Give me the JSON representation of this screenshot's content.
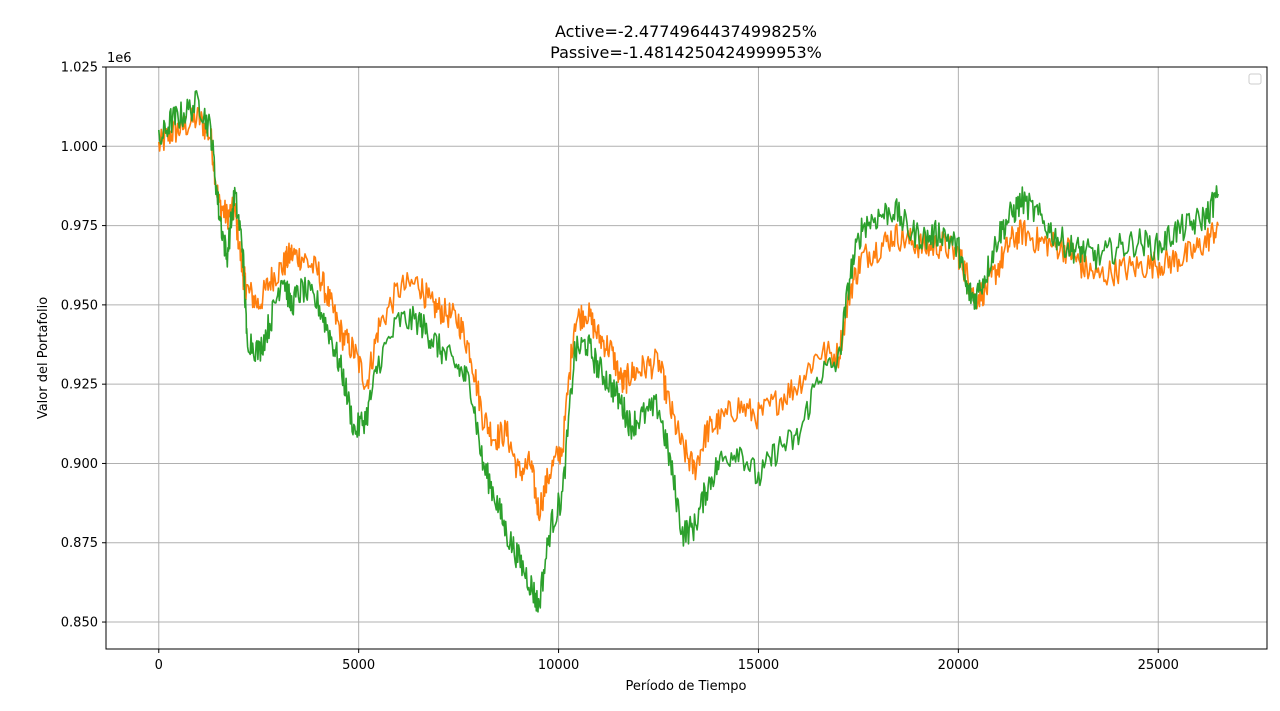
{
  "chart_data": {
    "type": "line",
    "title_lines": [
      "Active=-2.4774964437499825%",
      "Passive=-1.4814250424999953%"
    ],
    "xlabel": "Período de Tiempo",
    "ylabel": "Valor del Portafolio",
    "y_offset_label": "1e6",
    "xlim": [
      -1320,
      27720
    ],
    "ylim": [
      0.8415,
      1.025
    ],
    "x_ticks": [
      0,
      5000,
      10000,
      15000,
      20000,
      25000
    ],
    "x_tick_labels": [
      "0",
      "5000",
      "10000",
      "15000",
      "20000",
      "25000"
    ],
    "y_ticks": [
      0.85,
      0.875,
      0.9,
      0.925,
      0.95,
      0.975,
      1.0,
      1.025
    ],
    "y_tick_labels": [
      "0.850",
      "0.875",
      "0.900",
      "0.925",
      "0.950",
      "0.975",
      "1.000",
      "1.025"
    ],
    "grid": true,
    "legend": {
      "placement": "upper-right",
      "entries": []
    },
    "series": [
      {
        "color": "#ff7f0e",
        "x": [
          0,
          300,
          600,
          1000,
          1300,
          1500,
          1700,
          1900,
          2100,
          2200,
          2500,
          2800,
          3100,
          3300,
          3600,
          4000,
          4300,
          4600,
          4900,
          5200,
          5500,
          6000,
          6500,
          6800,
          7100,
          7500,
          7800,
          8100,
          8400,
          8700,
          9000,
          9300,
          9500,
          9800,
          10100,
          10400,
          10700,
          11000,
          11300,
          11600,
          11800,
          12100,
          12500,
          12800,
          13100,
          13400,
          13700,
          14000,
          14500,
          15000,
          15500,
          16000,
          16500,
          17000,
          17300,
          17600,
          18000,
          18400,
          18800,
          19200,
          19600,
          20000,
          20200,
          20400,
          20700,
          21000,
          21300,
          21600,
          22000,
          22400,
          22800,
          23100,
          23500,
          24000,
          24500,
          25000,
          25400,
          25800,
          26200,
          26500
        ],
        "y": [
          1.0,
          1.004,
          1.006,
          1.009,
          1.003,
          0.982,
          0.978,
          0.98,
          0.96,
          0.955,
          0.95,
          0.958,
          0.962,
          0.966,
          0.965,
          0.96,
          0.95,
          0.94,
          0.935,
          0.925,
          0.943,
          0.955,
          0.957,
          0.95,
          0.948,
          0.945,
          0.935,
          0.915,
          0.908,
          0.91,
          0.897,
          0.9,
          0.885,
          0.898,
          0.905,
          0.945,
          0.948,
          0.94,
          0.936,
          0.925,
          0.928,
          0.93,
          0.932,
          0.917,
          0.905,
          0.898,
          0.91,
          0.913,
          0.918,
          0.915,
          0.92,
          0.925,
          0.935,
          0.934,
          0.955,
          0.965,
          0.968,
          0.972,
          0.97,
          0.968,
          0.969,
          0.966,
          0.96,
          0.952,
          0.955,
          0.962,
          0.97,
          0.973,
          0.97,
          0.969,
          0.967,
          0.962,
          0.959,
          0.961,
          0.962,
          0.963,
          0.964,
          0.966,
          0.97,
          0.975
        ]
      },
      {
        "color": "#2ca02c",
        "x": [
          0,
          300,
          600,
          1000,
          1300,
          1500,
          1700,
          1900,
          2100,
          2200,
          2500,
          2800,
          3100,
          3300,
          3600,
          4000,
          4300,
          4600,
          4900,
          5200,
          5500,
          6000,
          6500,
          6800,
          7100,
          7500,
          7800,
          8100,
          8400,
          8700,
          9000,
          9300,
          9500,
          9800,
          10100,
          10400,
          10700,
          11000,
          11300,
          11600,
          11800,
          12100,
          12500,
          12800,
          13100,
          13400,
          13700,
          14000,
          14500,
          15000,
          15500,
          16000,
          16500,
          17000,
          17300,
          17600,
          18000,
          18400,
          18800,
          19200,
          19600,
          20000,
          20200,
          20400,
          20700,
          21000,
          21300,
          21600,
          22000,
          22400,
          22800,
          23100,
          23500,
          24000,
          24500,
          25000,
          25400,
          25800,
          26200,
          26500
        ],
        "y": [
          1.001,
          1.008,
          1.01,
          1.014,
          1.005,
          0.98,
          0.965,
          0.985,
          0.968,
          0.94,
          0.935,
          0.945,
          0.96,
          0.95,
          0.955,
          0.95,
          0.94,
          0.928,
          0.91,
          0.915,
          0.932,
          0.945,
          0.945,
          0.94,
          0.935,
          0.93,
          0.925,
          0.9,
          0.89,
          0.878,
          0.87,
          0.862,
          0.855,
          0.88,
          0.89,
          0.935,
          0.938,
          0.93,
          0.925,
          0.918,
          0.912,
          0.915,
          0.918,
          0.9,
          0.878,
          0.88,
          0.892,
          0.9,
          0.905,
          0.895,
          0.905,
          0.908,
          0.928,
          0.932,
          0.96,
          0.975,
          0.978,
          0.98,
          0.973,
          0.971,
          0.973,
          0.968,
          0.955,
          0.952,
          0.96,
          0.972,
          0.978,
          0.983,
          0.978,
          0.972,
          0.968,
          0.967,
          0.965,
          0.968,
          0.97,
          0.968,
          0.973,
          0.975,
          0.978,
          0.985
        ]
      }
    ]
  }
}
